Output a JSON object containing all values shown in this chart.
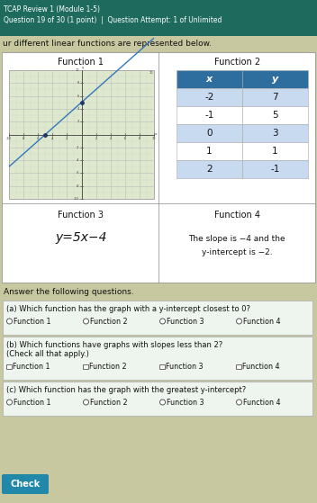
{
  "title_line1": "TCAP Review 1 (Module 1-5)",
  "title_line2": "Question 19 of 30 (1 point)  |  Question Attempt: 1 of Unlimited",
  "intro_text": "ur different linear functions are represented below.",
  "page_bg": "#c8c8a0",
  "box_bg": "#ffffff",
  "graph_bg": "#dde8cc",
  "func1_label": "Function 1",
  "func2_label": "Function 2",
  "func3_label": "Function 3",
  "func4_label": "Function 4",
  "func3_eq": "y=5x−4",
  "func4_text1": "The slope is −4 and the",
  "func4_text2": "y-intercept is −2.",
  "table_x": [
    "-2",
    "-1",
    "0",
    "1",
    "2"
  ],
  "table_y": [
    "7",
    "5",
    "3",
    "1",
    "-1"
  ],
  "answer_header": "Answer the following questions.",
  "qa_label": "(a) Which function has the graph with a y-intercept closest to 0?",
  "qa_options": [
    "Function 1",
    "Function 2",
    "Function 3",
    "Function 4"
  ],
  "qb_label": "(b) Which functions have graphs with slopes less than 2?",
  "qb_sub": "(Check all that apply.)",
  "qb_options": [
    "Function 1",
    "Function 2",
    "Function 3",
    "Function 4"
  ],
  "qc_label": "(c) Which function has the graph with the greatest y-intercept?",
  "qc_options": [
    "Function 1",
    "Function 2",
    "Function 3",
    "Function 4"
  ],
  "check_btn": "Check",
  "check_bg": "#2288aa",
  "header_text_color": "#ffffff",
  "body_text_color": "#111111",
  "teal_header": "#1e6b5e",
  "table_header_bg": "#2e6e9e",
  "table_alt_bg": "#c8daf0",
  "question_box_bg": "#eef5ee"
}
